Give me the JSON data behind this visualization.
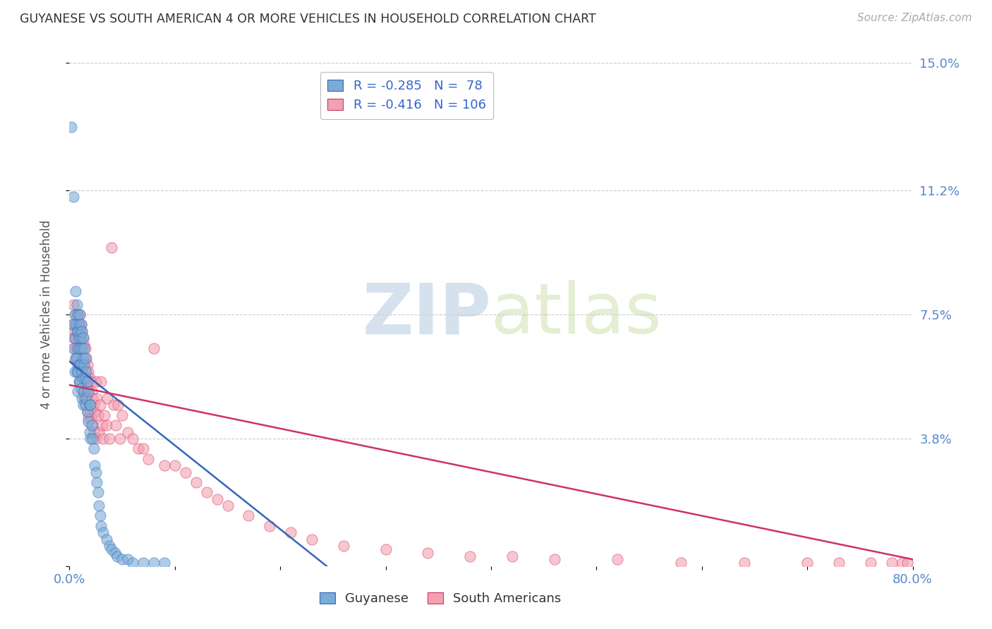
{
  "title": "GUYANESE VS SOUTH AMERICAN 4 OR MORE VEHICLES IN HOUSEHOLD CORRELATION CHART",
  "source": "Source: ZipAtlas.com",
  "ylabel": "4 or more Vehicles in Household",
  "xlim": [
    0.0,
    0.8
  ],
  "ylim": [
    0.0,
    0.15
  ],
  "yticks": [
    0.0,
    0.038,
    0.075,
    0.112,
    0.15
  ],
  "ytick_labels": [
    "",
    "3.8%",
    "7.5%",
    "11.2%",
    "15.0%"
  ],
  "xticks": [
    0.0,
    0.1,
    0.2,
    0.3,
    0.4,
    0.5,
    0.6,
    0.7,
    0.8
  ],
  "xtick_labels": [
    "0.0%",
    "",
    "",
    "",
    "",
    "",
    "",
    "",
    "80.0%"
  ],
  "guyanese_color": "#7aacd6",
  "south_american_color": "#f4a0b0",
  "guyanese_line_color": "#3366bb",
  "south_american_line_color": "#cc3366",
  "legend_blue_label": "R = -0.285   N =  78",
  "legend_pink_label": "R = -0.416   N = 106",
  "watermark_zip": "ZIP",
  "watermark_atlas": "atlas",
  "legend_label_guyanese": "Guyanese",
  "legend_label_sa": "South Americans",
  "background_color": "#ffffff",
  "grid_color": "#cccccc",
  "guyanese_intercept": 0.061,
  "guyanese_slope": -0.25,
  "sa_intercept": 0.054,
  "sa_slope": -0.065,
  "guyanese_x": [
    0.002,
    0.003,
    0.004,
    0.004,
    0.005,
    0.005,
    0.005,
    0.006,
    0.006,
    0.006,
    0.007,
    0.007,
    0.007,
    0.007,
    0.008,
    0.008,
    0.008,
    0.008,
    0.008,
    0.009,
    0.009,
    0.009,
    0.009,
    0.01,
    0.01,
    0.01,
    0.01,
    0.01,
    0.011,
    0.011,
    0.011,
    0.011,
    0.012,
    0.012,
    0.012,
    0.012,
    0.013,
    0.013,
    0.013,
    0.013,
    0.014,
    0.014,
    0.014,
    0.015,
    0.015,
    0.015,
    0.016,
    0.016,
    0.017,
    0.017,
    0.018,
    0.018,
    0.019,
    0.019,
    0.02,
    0.02,
    0.021,
    0.022,
    0.023,
    0.024,
    0.025,
    0.026,
    0.027,
    0.028,
    0.029,
    0.03,
    0.032,
    0.035,
    0.038,
    0.04,
    0.043,
    0.045,
    0.05,
    0.055,
    0.06,
    0.07,
    0.08,
    0.09
  ],
  "guyanese_y": [
    0.131,
    0.072,
    0.065,
    0.11,
    0.075,
    0.068,
    0.058,
    0.082,
    0.072,
    0.062,
    0.078,
    0.07,
    0.062,
    0.058,
    0.075,
    0.07,
    0.065,
    0.058,
    0.052,
    0.072,
    0.068,
    0.06,
    0.055,
    0.075,
    0.07,
    0.065,
    0.06,
    0.055,
    0.072,
    0.068,
    0.06,
    0.053,
    0.07,
    0.065,
    0.058,
    0.05,
    0.068,
    0.062,
    0.056,
    0.048,
    0.065,
    0.06,
    0.052,
    0.062,
    0.056,
    0.048,
    0.058,
    0.05,
    0.055,
    0.046,
    0.052,
    0.043,
    0.048,
    0.04,
    0.048,
    0.038,
    0.042,
    0.038,
    0.035,
    0.03,
    0.028,
    0.025,
    0.022,
    0.018,
    0.015,
    0.012,
    0.01,
    0.008,
    0.006,
    0.005,
    0.004,
    0.003,
    0.002,
    0.002,
    0.001,
    0.001,
    0.001,
    0.001
  ],
  "sa_x": [
    0.003,
    0.004,
    0.004,
    0.005,
    0.005,
    0.006,
    0.006,
    0.006,
    0.007,
    0.007,
    0.008,
    0.008,
    0.008,
    0.009,
    0.009,
    0.009,
    0.01,
    0.01,
    0.01,
    0.01,
    0.011,
    0.011,
    0.011,
    0.012,
    0.012,
    0.012,
    0.013,
    0.013,
    0.013,
    0.014,
    0.014,
    0.014,
    0.015,
    0.015,
    0.015,
    0.016,
    0.016,
    0.016,
    0.017,
    0.017,
    0.017,
    0.018,
    0.018,
    0.018,
    0.019,
    0.019,
    0.02,
    0.02,
    0.021,
    0.021,
    0.022,
    0.022,
    0.023,
    0.023,
    0.024,
    0.025,
    0.025,
    0.026,
    0.027,
    0.028,
    0.029,
    0.03,
    0.031,
    0.032,
    0.033,
    0.035,
    0.036,
    0.038,
    0.04,
    0.042,
    0.044,
    0.046,
    0.048,
    0.05,
    0.055,
    0.06,
    0.065,
    0.07,
    0.075,
    0.08,
    0.09,
    0.1,
    0.11,
    0.12,
    0.13,
    0.14,
    0.15,
    0.17,
    0.19,
    0.21,
    0.23,
    0.26,
    0.3,
    0.34,
    0.38,
    0.42,
    0.46,
    0.52,
    0.58,
    0.64,
    0.7,
    0.73,
    0.76,
    0.78,
    0.79,
    0.795
  ],
  "sa_y": [
    0.072,
    0.068,
    0.078,
    0.07,
    0.065,
    0.075,
    0.068,
    0.062,
    0.072,
    0.065,
    0.075,
    0.068,
    0.06,
    0.072,
    0.065,
    0.058,
    0.075,
    0.068,
    0.062,
    0.055,
    0.072,
    0.065,
    0.058,
    0.07,
    0.062,
    0.055,
    0.068,
    0.06,
    0.052,
    0.066,
    0.058,
    0.05,
    0.065,
    0.058,
    0.05,
    0.062,
    0.055,
    0.048,
    0.06,
    0.053,
    0.046,
    0.058,
    0.052,
    0.044,
    0.056,
    0.048,
    0.055,
    0.046,
    0.052,
    0.044,
    0.05,
    0.042,
    0.048,
    0.04,
    0.046,
    0.055,
    0.038,
    0.05,
    0.045,
    0.04,
    0.048,
    0.055,
    0.042,
    0.038,
    0.045,
    0.042,
    0.05,
    0.038,
    0.095,
    0.048,
    0.042,
    0.048,
    0.038,
    0.045,
    0.04,
    0.038,
    0.035,
    0.035,
    0.032,
    0.065,
    0.03,
    0.03,
    0.028,
    0.025,
    0.022,
    0.02,
    0.018,
    0.015,
    0.012,
    0.01,
    0.008,
    0.006,
    0.005,
    0.004,
    0.003,
    0.003,
    0.002,
    0.002,
    0.001,
    0.001,
    0.001,
    0.001,
    0.001,
    0.001,
    0.001,
    0.001
  ]
}
